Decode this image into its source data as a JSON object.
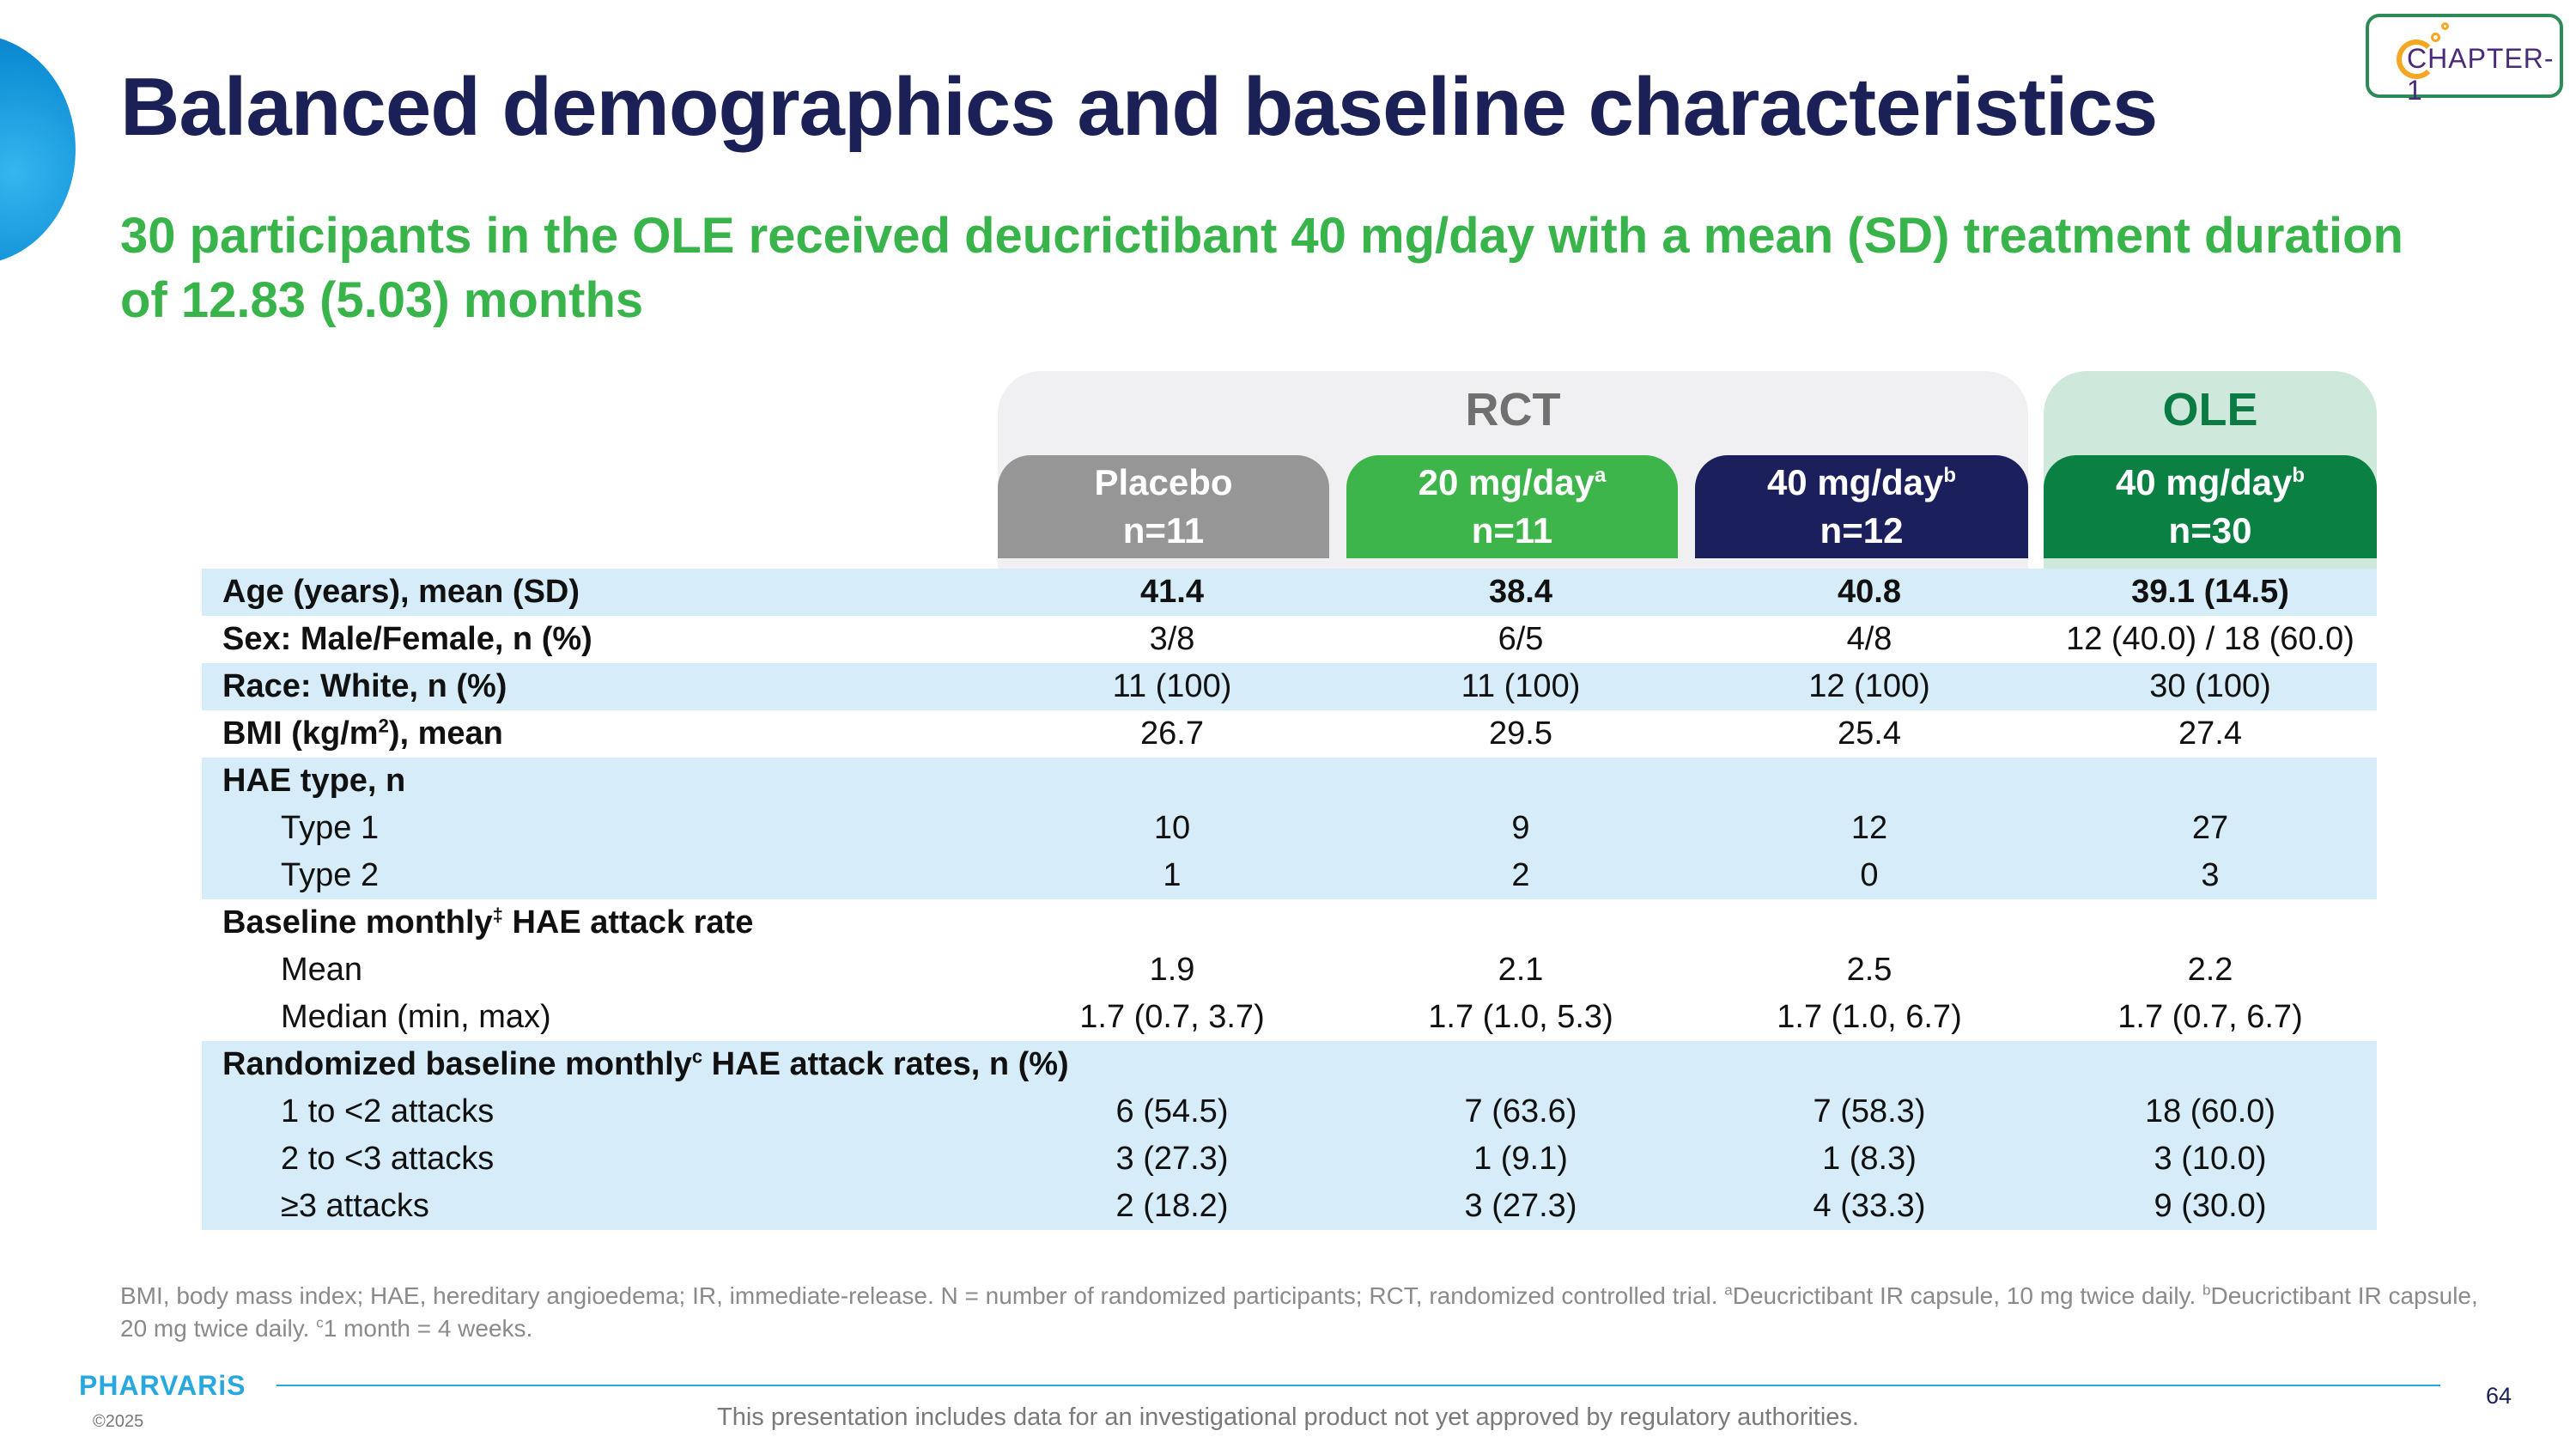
{
  "title": "Balanced demographics and baseline characteristics",
  "subtitle": "30 participants in the OLE received deucrictibant 40 mg/day with a mean (SD) treatment duration of 12.83 (5.03) months",
  "logo": {
    "text": "CHAPTER-1"
  },
  "groups": {
    "rct": "RCT",
    "ole": "OLE"
  },
  "columns": [
    {
      "dose": "Placebo",
      "sup": "",
      "n": "n=11"
    },
    {
      "dose": "20 mg/day",
      "sup": "a",
      "n": "n=11"
    },
    {
      "dose": "40 mg/day",
      "sup": "b",
      "n": "n=12"
    },
    {
      "dose": "40 mg/day",
      "sup": "b",
      "n": "n=30"
    }
  ],
  "rows": [
    {
      "label": "Age (years), mean (SD)",
      "values": [
        "41.4",
        "38.4",
        "40.8",
        "39.1 (14.5)"
      ]
    },
    {
      "label": "Sex: Male/Female, n (%)",
      "values": [
        "3/8",
        "6/5",
        "4/8",
        "12 (40.0) / 18 (60.0)"
      ]
    },
    {
      "label": "Race: White, n (%)",
      "values": [
        "11 (100)",
        "11 (100)",
        "12 (100)",
        "30 (100)"
      ]
    },
    {
      "label_pre": "BMI (kg/m",
      "label_sup": "2",
      "label_post": "), mean",
      "values": [
        "26.7",
        "29.5",
        "25.4",
        "27.4"
      ]
    },
    {
      "label": "HAE type, n"
    },
    {
      "label": "Type 1",
      "values": [
        "10",
        "9",
        "12",
        "27"
      ]
    },
    {
      "label": "Type 2",
      "values": [
        "1",
        "2",
        "0",
        "3"
      ]
    },
    {
      "label_pre": "Baseline monthly",
      "label_sup": "‡",
      "label_post": " HAE attack rate"
    },
    {
      "label": "Mean",
      "values": [
        "1.9",
        "2.1",
        "2.5",
        "2.2"
      ]
    },
    {
      "label": "Median (min, max)",
      "values": [
        "1.7 (0.7, 3.7)",
        "1.7 (1.0, 5.3)",
        "1.7 (1.0, 6.7)",
        "1.7 (0.7, 6.7)"
      ]
    },
    {
      "label_pre": "Randomized baseline monthly",
      "label_sup": "c",
      "label_post": " HAE attack rates, n (%)"
    },
    {
      "label": "1 to <2 attacks",
      "values": [
        "6 (54.5)",
        "7 (63.6)",
        "7 (58.3)",
        "18 (60.0)"
      ]
    },
    {
      "label": "2 to <3 attacks",
      "values": [
        "3 (27.3)",
        "1 (9.1)",
        "1 (8.3)",
        "3 (10.0)"
      ]
    },
    {
      "label": "≥3 attacks",
      "values": [
        "2 (18.2)",
        "3 (27.3)",
        "4 (33.3)",
        "9 (30.0)"
      ]
    }
  ],
  "footnote": {
    "text1": "BMI, body mass index; HAE, hereditary angioedema; IR, immediate-release. N = number of randomized participants; RCT, randomized controlled trial. ",
    "sup_a": "a",
    "text2": "Deucrictibant IR capsule, 10 mg twice daily. ",
    "sup_b": "b",
    "text3": "Deucrictibant IR capsule, 20 mg twice daily.  ",
    "sup_c": "c",
    "text4": "1 month = 4 weeks."
  },
  "brand": "PHARVARiS",
  "copyright": "©2025",
  "disclaimer": "This presentation includes data for an investigational product not yet approved by regulatory authorities.",
  "page_number": "64"
}
